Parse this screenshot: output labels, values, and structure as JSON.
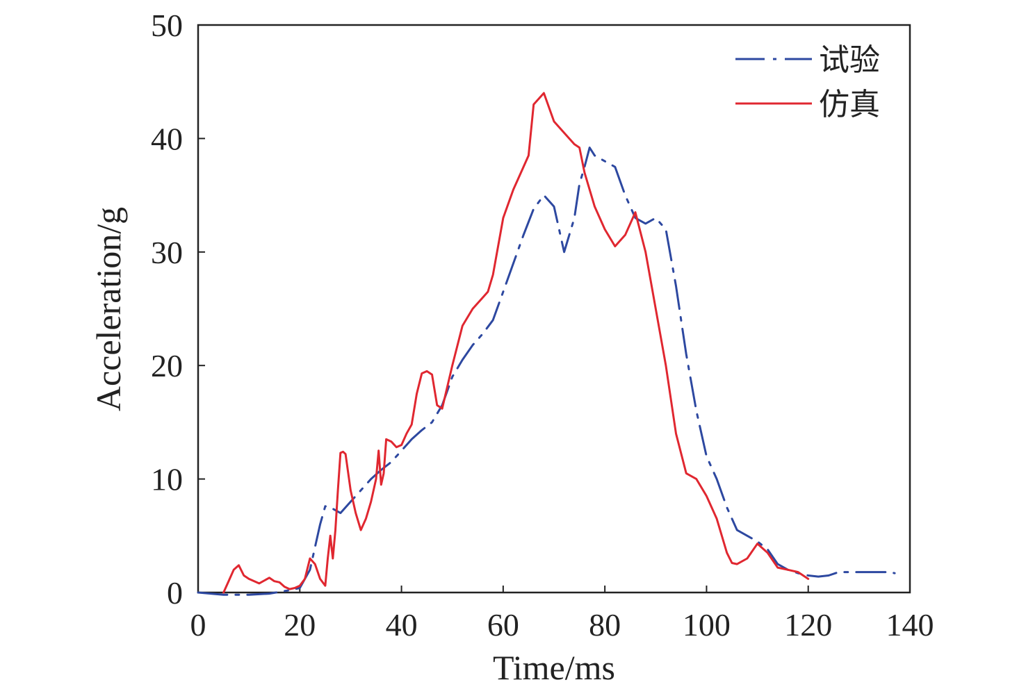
{
  "chart_data": {
    "type": "line",
    "title": "",
    "xlabel": "Time/ms",
    "ylabel": "Acceleration/g",
    "xlim": [
      0,
      140
    ],
    "ylim": [
      0,
      50
    ],
    "xticks": [
      0,
      20,
      40,
      60,
      80,
      100,
      120,
      140
    ],
    "yticks": [
      0,
      10,
      20,
      30,
      40,
      50
    ],
    "grid": false,
    "legend_position": "top-right",
    "series": [
      {
        "name": "试验",
        "color": "#2d48a0",
        "style": "dash-dot",
        "x": [
          0,
          5,
          10,
          14,
          18,
          20,
          22,
          23,
          24,
          25,
          26,
          28,
          30,
          32,
          34,
          36,
          38,
          40,
          42,
          44,
          46,
          48,
          50,
          52,
          54,
          56,
          58,
          60,
          62,
          64,
          66,
          68,
          70,
          72,
          74,
          75,
          76,
          77,
          78,
          80,
          82,
          84,
          86,
          88,
          90,
          92,
          94,
          96,
          98,
          100,
          102,
          104,
          106,
          108,
          110,
          112,
          114,
          116,
          118,
          120,
          122,
          124,
          126,
          128,
          130,
          132,
          134,
          136,
          137
        ],
        "y": [
          0,
          -0.2,
          -0.2,
          -0.1,
          0.2,
          0.4,
          2.0,
          4.0,
          6.0,
          7.6,
          7.5,
          7.0,
          8.0,
          9.0,
          10.0,
          10.8,
          11.5,
          12.5,
          13.5,
          14.3,
          15.0,
          16.5,
          19.0,
          20.5,
          21.8,
          22.8,
          24.0,
          26.5,
          29.0,
          31.5,
          33.8,
          35.0,
          34.0,
          30.0,
          33.0,
          36.0,
          37.5,
          39.2,
          38.5,
          38.0,
          37.5,
          35.0,
          33.0,
          32.5,
          33.0,
          32.0,
          27.0,
          21.0,
          16.0,
          12.0,
          10.0,
          7.5,
          5.5,
          5.0,
          4.5,
          3.8,
          2.5,
          2.0,
          1.7,
          1.5,
          1.4,
          1.5,
          1.8,
          1.8,
          1.8,
          1.8,
          1.8,
          1.8,
          1.7
        ]
      },
      {
        "name": "仿真",
        "color": "#e02730",
        "style": "solid",
        "x": [
          5,
          6,
          7,
          8,
          9,
          10,
          12,
          14,
          15,
          16,
          17,
          18,
          19,
          20,
          21,
          22,
          23,
          24,
          25,
          25.5,
          26,
          26.5,
          27,
          27.5,
          28,
          28.5,
          29,
          30,
          31,
          32,
          33,
          34,
          35,
          35.5,
          36,
          36.5,
          37,
          38,
          39,
          40,
          41,
          42,
          43,
          44,
          45,
          46,
          47,
          48,
          50,
          52,
          54,
          56,
          57,
          58,
          60,
          62,
          64,
          65,
          66,
          68,
          70,
          72,
          74,
          75,
          76,
          78,
          80,
          82,
          84,
          86,
          88,
          90,
          92,
          94,
          96,
          98,
          100,
          102,
          104,
          105,
          106,
          108,
          110,
          112,
          114,
          116,
          118,
          120
        ],
        "y": [
          0,
          1.0,
          2.0,
          2.4,
          1.5,
          1.2,
          0.8,
          1.3,
          1.0,
          0.9,
          0.5,
          0.3,
          0.4,
          0.6,
          1.2,
          3.0,
          2.5,
          1.2,
          0.6,
          3.0,
          5.0,
          3.0,
          5.5,
          9.0,
          12.3,
          12.4,
          12.2,
          9.0,
          7.0,
          5.5,
          6.5,
          8.0,
          10.0,
          12.5,
          9.5,
          10.5,
          13.5,
          13.3,
          12.8,
          13.0,
          14.0,
          14.8,
          17.5,
          19.3,
          19.5,
          19.2,
          16.5,
          16.2,
          20.0,
          23.5,
          25.0,
          26.0,
          26.5,
          28.0,
          33.0,
          35.5,
          37.5,
          38.5,
          43.0,
          44.0,
          41.5,
          40.5,
          39.5,
          39.2,
          37.0,
          34.0,
          32.0,
          30.5,
          31.5,
          33.5,
          30.0,
          25.0,
          20.0,
          14.0,
          10.5,
          10.0,
          8.5,
          6.5,
          3.5,
          2.6,
          2.5,
          3.0,
          4.3,
          3.5,
          2.2,
          2.0,
          1.8,
          1.2
        ]
      }
    ]
  }
}
